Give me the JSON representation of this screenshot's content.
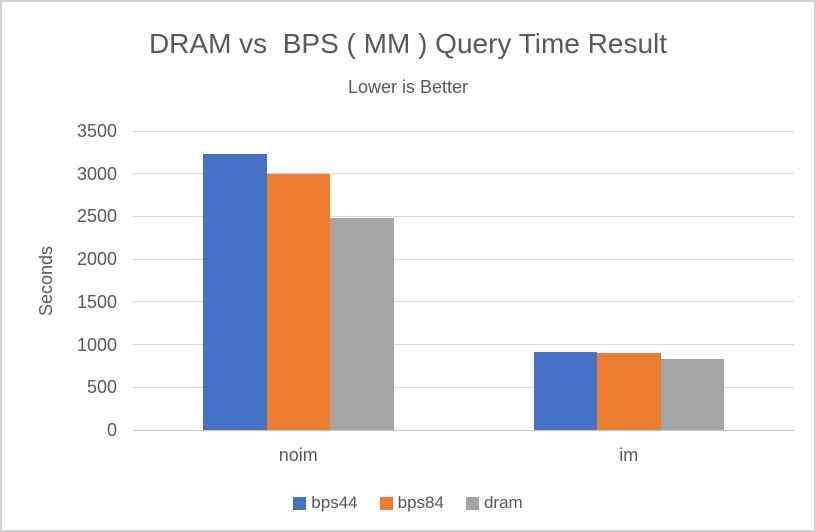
{
  "chart_data": {
    "type": "bar",
    "title": "DRAM vs  BPS ( MM ) Query Time Result",
    "subtitle": "Lower is Better",
    "ylabel": "Seconds",
    "xlabel": "",
    "categories": [
      "noim",
      "im"
    ],
    "series": [
      {
        "name": "bps44",
        "color": "#4472C4",
        "values": [
          3230,
          915
        ]
      },
      {
        "name": "bps84",
        "color": "#ED7D31",
        "values": [
          3000,
          900
        ]
      },
      {
        "name": "dram",
        "color": "#A5A5A5",
        "values": [
          2480,
          830
        ]
      }
    ],
    "ylim": [
      0,
      3500
    ],
    "ytick_step": 500,
    "grid": true,
    "legend_position": "bottom",
    "gridline_color": "#d9d9d9",
    "baseline_color": "#c6c6c6",
    "text_color": "#595959"
  }
}
